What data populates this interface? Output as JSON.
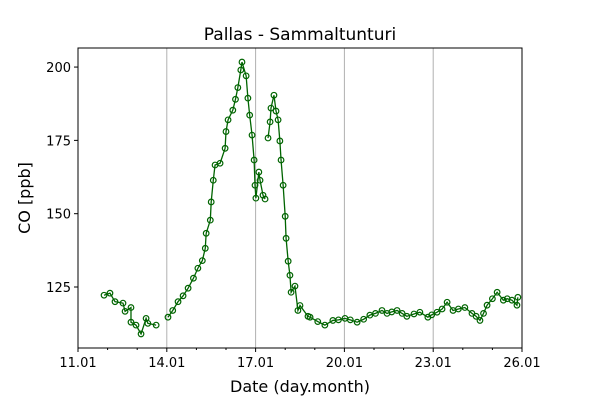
{
  "chart_data": {
    "type": "line",
    "title": "Pallas - Sammaltunturi",
    "xlabel": "Date (day.month)",
    "ylabel": "CO [ppb]",
    "xlim": [
      11,
      26
    ],
    "ylim": [
      104.2,
      206.5
    ],
    "x_ticks": [
      11,
      14,
      17,
      20,
      23,
      26
    ],
    "x_tick_labels": [
      "11.01",
      "14.01",
      "17.01",
      "20.01",
      "23.01",
      "26.01"
    ],
    "x_minor_ticks": [
      12,
      13,
      15,
      16,
      18,
      19,
      21,
      22,
      24,
      25
    ],
    "y_ticks": [
      125,
      150,
      175,
      200
    ],
    "y_tick_labels": [
      "125",
      "150",
      "175",
      "200"
    ],
    "grid": "vertical lines at major x ticks",
    "color": "#006400",
    "marker": "open circle",
    "series": [
      {
        "name": "CO",
        "points": [
          [
            11.88,
            122.2
          ],
          [
            12.08,
            122.9
          ],
          [
            12.25,
            120
          ],
          [
            12.52,
            119.5
          ],
          [
            12.59,
            116.7
          ],
          [
            12.79,
            118
          ],
          [
            12.79,
            113
          ],
          [
            12.96,
            112
          ],
          [
            13.13,
            109
          ],
          [
            13.3,
            114.3
          ],
          [
            13.36,
            112.6
          ],
          [
            13.64,
            112
          ],
          null,
          [
            14.04,
            114.7
          ],
          [
            14.2,
            117
          ],
          [
            14.38,
            120
          ],
          [
            14.55,
            122
          ],
          [
            14.72,
            124.6
          ],
          [
            14.9,
            128
          ],
          [
            15.05,
            131.4
          ],
          [
            15.2,
            134
          ],
          [
            15.3,
            138.2
          ],
          [
            15.33,
            143.3
          ],
          [
            15.47,
            147.8
          ],
          [
            15.5,
            154
          ],
          [
            15.57,
            161.4
          ],
          [
            15.63,
            166.6
          ],
          [
            15.8,
            167.2
          ],
          [
            15.97,
            172.3
          ],
          [
            16.0,
            178
          ],
          [
            16.07,
            182
          ],
          [
            16.23,
            185.3
          ],
          [
            16.32,
            189
          ],
          [
            16.4,
            193
          ],
          [
            16.5,
            199
          ],
          [
            16.54,
            201.7
          ],
          [
            16.68,
            197
          ],
          [
            16.74,
            189.4
          ],
          [
            16.8,
            183.6
          ],
          [
            16.88,
            176.8
          ],
          [
            16.95,
            168.3
          ],
          [
            16.98,
            159.7
          ],
          [
            17.01,
            155.3
          ],
          [
            17.11,
            164.2
          ],
          [
            17.15,
            161.4
          ],
          [
            17.25,
            156.3
          ],
          [
            17.32,
            155
          ],
          null,
          [
            17.42,
            175.8
          ],
          [
            17.49,
            181.3
          ],
          [
            17.52,
            186
          ],
          [
            17.62,
            190.4
          ],
          [
            17.69,
            185
          ],
          [
            17.76,
            182
          ],
          [
            17.82,
            174.8
          ],
          [
            17.86,
            168.3
          ],
          [
            17.93,
            159.7
          ],
          [
            18.0,
            149.1
          ],
          [
            18.03,
            141.6
          ],
          [
            18.1,
            133.8
          ],
          [
            18.16,
            129
          ],
          [
            18.2,
            123.2
          ],
          [
            18.33,
            125.3
          ],
          [
            18.43,
            117
          ],
          [
            18.5,
            118.7
          ],
          [
            18.77,
            115
          ],
          [
            18.84,
            114.7
          ],
          [
            19.1,
            113.2
          ],
          [
            19.34,
            112
          ],
          [
            19.61,
            113.6
          ],
          [
            19.8,
            113.8
          ],
          [
            20.02,
            114.3
          ],
          [
            20.2,
            113.8
          ],
          [
            20.43,
            113
          ],
          [
            20.65,
            114
          ],
          [
            20.86,
            115.4
          ],
          [
            21.05,
            116
          ],
          [
            21.27,
            117
          ],
          [
            21.44,
            116
          ],
          [
            21.6,
            116.5
          ],
          [
            21.78,
            117
          ],
          [
            21.95,
            116
          ],
          [
            22.11,
            115
          ],
          [
            22.35,
            115.8
          ],
          [
            22.55,
            116.4
          ],
          [
            22.82,
            114.7
          ],
          [
            22.95,
            115.5
          ],
          [
            23.13,
            116.4
          ],
          [
            23.3,
            117.5
          ],
          [
            23.47,
            119.8
          ],
          [
            23.67,
            117
          ],
          [
            23.85,
            117.5
          ],
          [
            24.07,
            118
          ],
          [
            24.31,
            116
          ],
          [
            24.45,
            115
          ],
          [
            24.58,
            113.6
          ],
          [
            24.7,
            116
          ],
          [
            24.82,
            118.8
          ],
          [
            25.0,
            121
          ],
          [
            25.16,
            123.2
          ],
          [
            25.37,
            120.5
          ],
          [
            25.5,
            121
          ],
          [
            25.66,
            120.5
          ],
          [
            25.83,
            118.8
          ],
          [
            25.86,
            121.5
          ]
        ]
      }
    ]
  }
}
